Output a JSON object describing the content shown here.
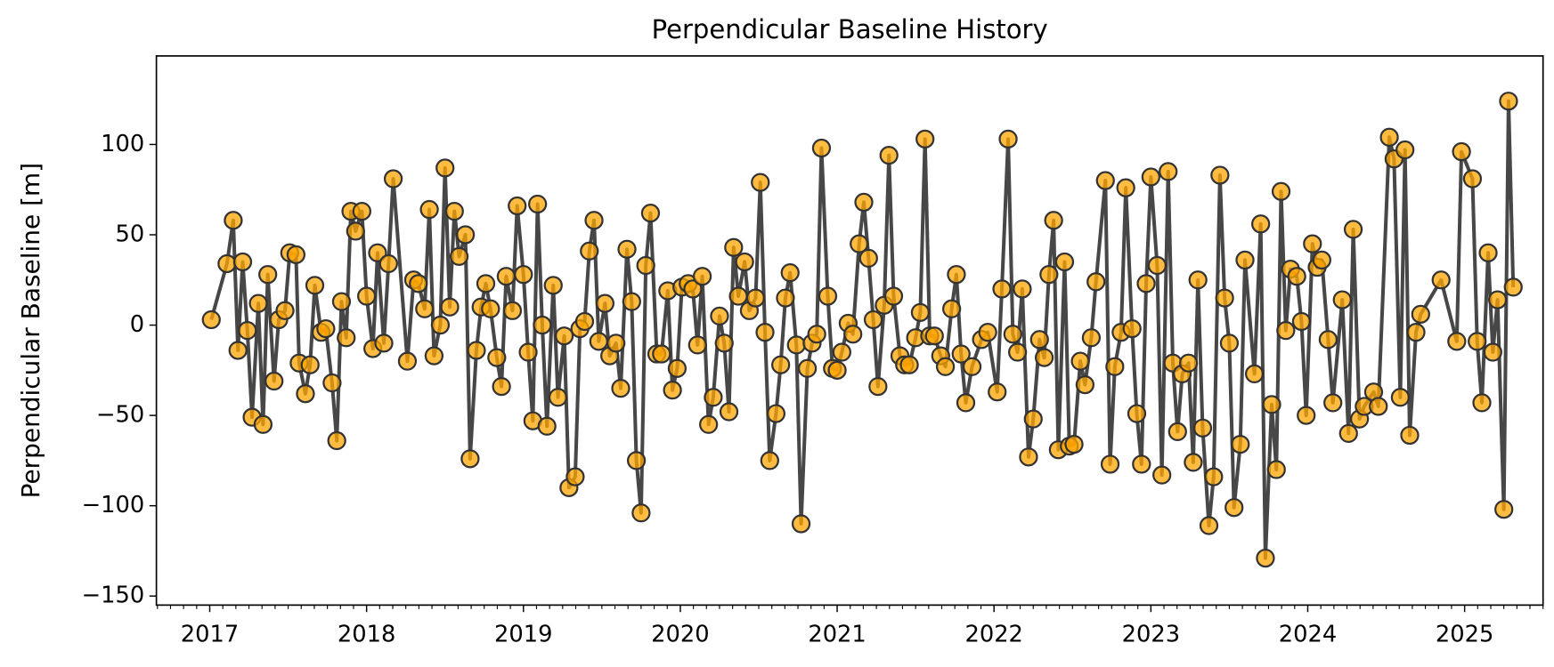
{
  "chart_data": {
    "type": "line",
    "title": "Perpendicular Baseline History",
    "ylabel": "Perpendicular Baseline [m]",
    "color": "#ffa500",
    "line_color": "#333333",
    "xlim": [
      2016.66,
      2025.5
    ],
    "xticks": [
      2017,
      2018,
      2019,
      2020,
      2021,
      2022,
      2023,
      2024,
      2025
    ],
    "ylim": [
      -155,
      149
    ],
    "yticks": [
      {
        "value": -150,
        "label": "−150"
      },
      {
        "value": -100,
        "label": "−100"
      },
      {
        "value": -50,
        "label": "−50"
      },
      0,
      50,
      100
    ],
    "grid": false,
    "x": [
      2017.01,
      2017.11,
      2017.15,
      2017.18,
      2017.21,
      2017.24,
      2017.27,
      2017.31,
      2017.34,
      2017.37,
      2017.41,
      2017.44,
      2017.48,
      2017.51,
      2017.55,
      2017.57,
      2017.61,
      2017.64,
      2017.67,
      2017.71,
      2017.74,
      2017.78,
      2017.81,
      2017.84,
      2017.87,
      2017.9,
      2017.93,
      2017.97,
      2018.0,
      2018.04,
      2018.07,
      2018.11,
      2018.14,
      2018.17,
      2018.26,
      2018.3,
      2018.33,
      2018.37,
      2018.4,
      2018.43,
      2018.47,
      2018.5,
      2018.53,
      2018.56,
      2018.59,
      2018.63,
      2018.66,
      2018.7,
      2018.73,
      2018.76,
      2018.79,
      2018.83,
      2018.86,
      2018.89,
      2018.93,
      2018.96,
      2019.0,
      2019.03,
      2019.06,
      2019.09,
      2019.12,
      2019.15,
      2019.19,
      2019.22,
      2019.26,
      2019.29,
      2019.33,
      2019.36,
      2019.39,
      2019.42,
      2019.45,
      2019.48,
      2019.52,
      2019.55,
      2019.59,
      2019.62,
      2019.66,
      2019.69,
      2019.72,
      2019.75,
      2019.78,
      2019.81,
      2019.85,
      2019.88,
      2019.92,
      2019.95,
      2019.98,
      2020.01,
      2020.05,
      2020.08,
      2020.11,
      2020.14,
      2020.18,
      2020.21,
      2020.25,
      2020.28,
      2020.31,
      2020.34,
      2020.37,
      2020.41,
      2020.44,
      2020.48,
      2020.51,
      2020.54,
      2020.57,
      2020.61,
      2020.64,
      2020.67,
      2020.7,
      2020.74,
      2020.77,
      2020.81,
      2020.84,
      2020.87,
      2020.9,
      2020.94,
      2020.97,
      2021.0,
      2021.03,
      2021.07,
      2021.1,
      2021.14,
      2021.17,
      2021.2,
      2021.23,
      2021.26,
      2021.3,
      2021.33,
      2021.36,
      2021.4,
      2021.43,
      2021.46,
      2021.5,
      2021.53,
      2021.56,
      2021.59,
      2021.62,
      2021.66,
      2021.69,
      2021.73,
      2021.76,
      2021.79,
      2021.82,
      2021.86,
      2021.92,
      2021.96,
      2022.02,
      2022.05,
      2022.09,
      2022.12,
      2022.15,
      2022.18,
      2022.22,
      2022.25,
      2022.29,
      2022.32,
      2022.35,
      2022.38,
      2022.41,
      2022.45,
      2022.48,
      2022.51,
      2022.55,
      2022.58,
      2022.62,
      2022.65,
      2022.71,
      2022.74,
      2022.77,
      2022.81,
      2022.84,
      2022.88,
      2022.91,
      2022.94,
      2022.97,
      2023.0,
      2023.04,
      2023.07,
      2023.11,
      2023.14,
      2023.17,
      2023.2,
      2023.24,
      2023.27,
      2023.3,
      2023.33,
      2023.37,
      2023.4,
      2023.44,
      2023.47,
      2023.5,
      2023.53,
      2023.57,
      2023.6,
      2023.66,
      2023.7,
      2023.73,
      2023.77,
      2023.8,
      2023.83,
      2023.86,
      2023.89,
      2023.93,
      2023.96,
      2023.99,
      2024.03,
      2024.06,
      2024.09,
      2024.13,
      2024.16,
      2024.22,
      2024.26,
      2024.29,
      2024.33,
      2024.36,
      2024.42,
      2024.45,
      2024.52,
      2024.55,
      2024.59,
      2024.62,
      2024.65,
      2024.69,
      2024.72,
      2024.85,
      2024.95,
      2024.98,
      2025.05,
      2025.08,
      2025.11,
      2025.15,
      2025.18,
      2025.21,
      2025.25,
      2025.28,
      2025.31
    ],
    "values": [
      3,
      34,
      58,
      -14,
      35,
      -3,
      -51,
      12,
      -55,
      28,
      -31,
      3,
      8,
      40,
      39,
      -21,
      -38,
      -22,
      22,
      -4,
      -2,
      -32,
      -64,
      13,
      -7,
      63,
      52,
      63,
      16,
      -13,
      40,
      -10,
      34,
      81,
      -20,
      25,
      23,
      9,
      64,
      -17,
      0,
      87,
      10,
      63,
      38,
      50,
      -74,
      -14,
      10,
      23,
      9,
      -18,
      -34,
      27,
      8,
      66,
      28,
      -15,
      -53,
      67,
      0,
      -56,
      22,
      -40,
      -6,
      -90,
      -84,
      -2,
      2,
      41,
      58,
      -9,
      12,
      -17,
      -10,
      -35,
      42,
      13,
      -75,
      -104,
      33,
      62,
      -16,
      -16,
      19,
      -36,
      -24,
      21,
      23,
      20,
      -11,
      27,
      -55,
      -40,
      5,
      -10,
      -48,
      43,
      16,
      35,
      8,
      15,
      79,
      -4,
      -75,
      -49,
      -22,
      15,
      29,
      -11,
      -110,
      -24,
      -10,
      -5,
      98,
      16,
      -24,
      -25,
      -15,
      1,
      -5,
      45,
      68,
      37,
      3,
      -34,
      11,
      94,
      16,
      -17,
      -22,
      -22,
      -7,
      7,
      103,
      -6,
      -6,
      -17,
      -23,
      9,
      28,
      -16,
      -43,
      -23,
      -8,
      -4,
      -37,
      20,
      103,
      -5,
      -15,
      20,
      -73,
      -52,
      -8,
      -18,
      28,
      58,
      -69,
      35,
      -67,
      -66,
      -20,
      -33,
      -7,
      24,
      80,
      -77,
      -23,
      -4,
      76,
      -2,
      -49,
      -77,
      23,
      82,
      33,
      -83,
      85,
      -21,
      -59,
      -27,
      -21,
      -76,
      25,
      -57,
      -111,
      -84,
      83,
      15,
      -10,
      -101,
      -66,
      36,
      -27,
      56,
      -129,
      -44,
      -80,
      74,
      -3,
      31,
      27,
      2,
      -50,
      45,
      32,
      36,
      -8,
      -43,
      14,
      -60,
      53,
      -52,
      -45,
      -37,
      -45,
      104,
      92,
      -40,
      97,
      -61,
      -4,
      6,
      25,
      -9,
      96,
      81,
      -9,
      -43,
      40,
      -15,
      14,
      -102,
      124,
      21
    ]
  }
}
